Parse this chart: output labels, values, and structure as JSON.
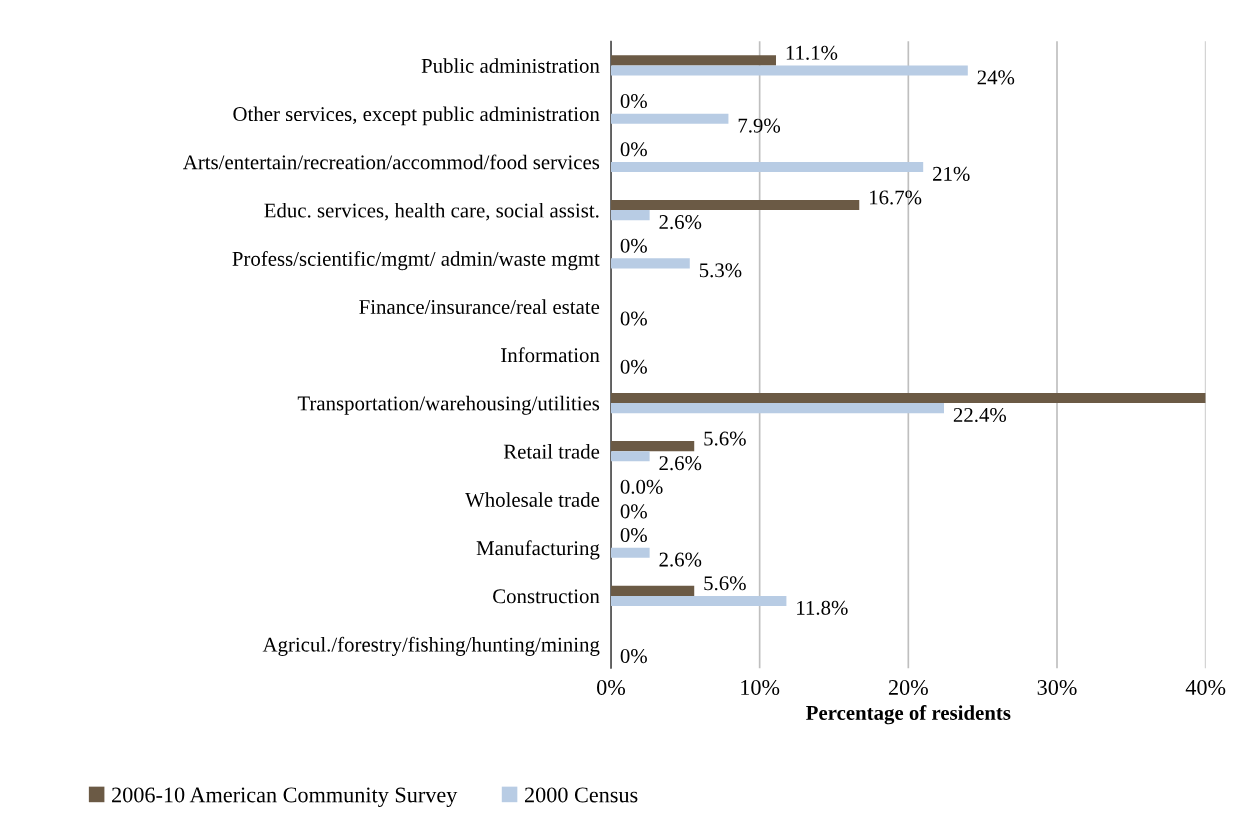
{
  "chart_data": {
    "type": "bar",
    "orientation": "horizontal",
    "categories": [
      "Public administration",
      "Other services, except public administration",
      "Arts/entertain/recreation/accommod/food services",
      "Educ. services, health care, social assist.",
      "Profess/scientific/mgmt/ admin/waste mgmt",
      "Finance/insurance/real estate",
      "Information",
      "Transportation/warehousing/utilities",
      "Retail trade",
      "Wholesale trade",
      "Manufacturing",
      "Construction",
      "Agricul./forestry/fishing/hunting/mining"
    ],
    "series": [
      {
        "name": "2006-10 American Community Survey",
        "color": "#6b5a45",
        "values": [
          11.1,
          0,
          0,
          16.7,
          0,
          0,
          0,
          40,
          5.6,
          0,
          0,
          5.6,
          0
        ],
        "value_labels": [
          "11.1%",
          "0%",
          "0%",
          "16.7%",
          "0%",
          null,
          null,
          null,
          "5.6%",
          "0.0%",
          "0%",
          "5.6%",
          null
        ]
      },
      {
        "name": "2000 Census",
        "color": "#b8cce4",
        "values": [
          24,
          7.9,
          21,
          2.6,
          5.3,
          0,
          0,
          22.4,
          2.6,
          0,
          2.6,
          11.8,
          0
        ],
        "value_labels": [
          "24%",
          "7.9%",
          "21%",
          "2.6%",
          "5.3%",
          "0%",
          "0%",
          "22.4%",
          "2.6%",
          "0%",
          "2.6%",
          "11.8%",
          "0%"
        ]
      }
    ],
    "xlabel": "Percentage of residents",
    "xlim": [
      0,
      40
    ],
    "xticks": [
      {
        "value": 0,
        "label": "0%"
      },
      {
        "value": 10,
        "label": "10%"
      },
      {
        "value": 20,
        "label": "20%"
      },
      {
        "value": 30,
        "label": "30%"
      },
      {
        "value": 40,
        "label": "40%"
      }
    ],
    "grid": "x",
    "legend": "bottom left"
  }
}
